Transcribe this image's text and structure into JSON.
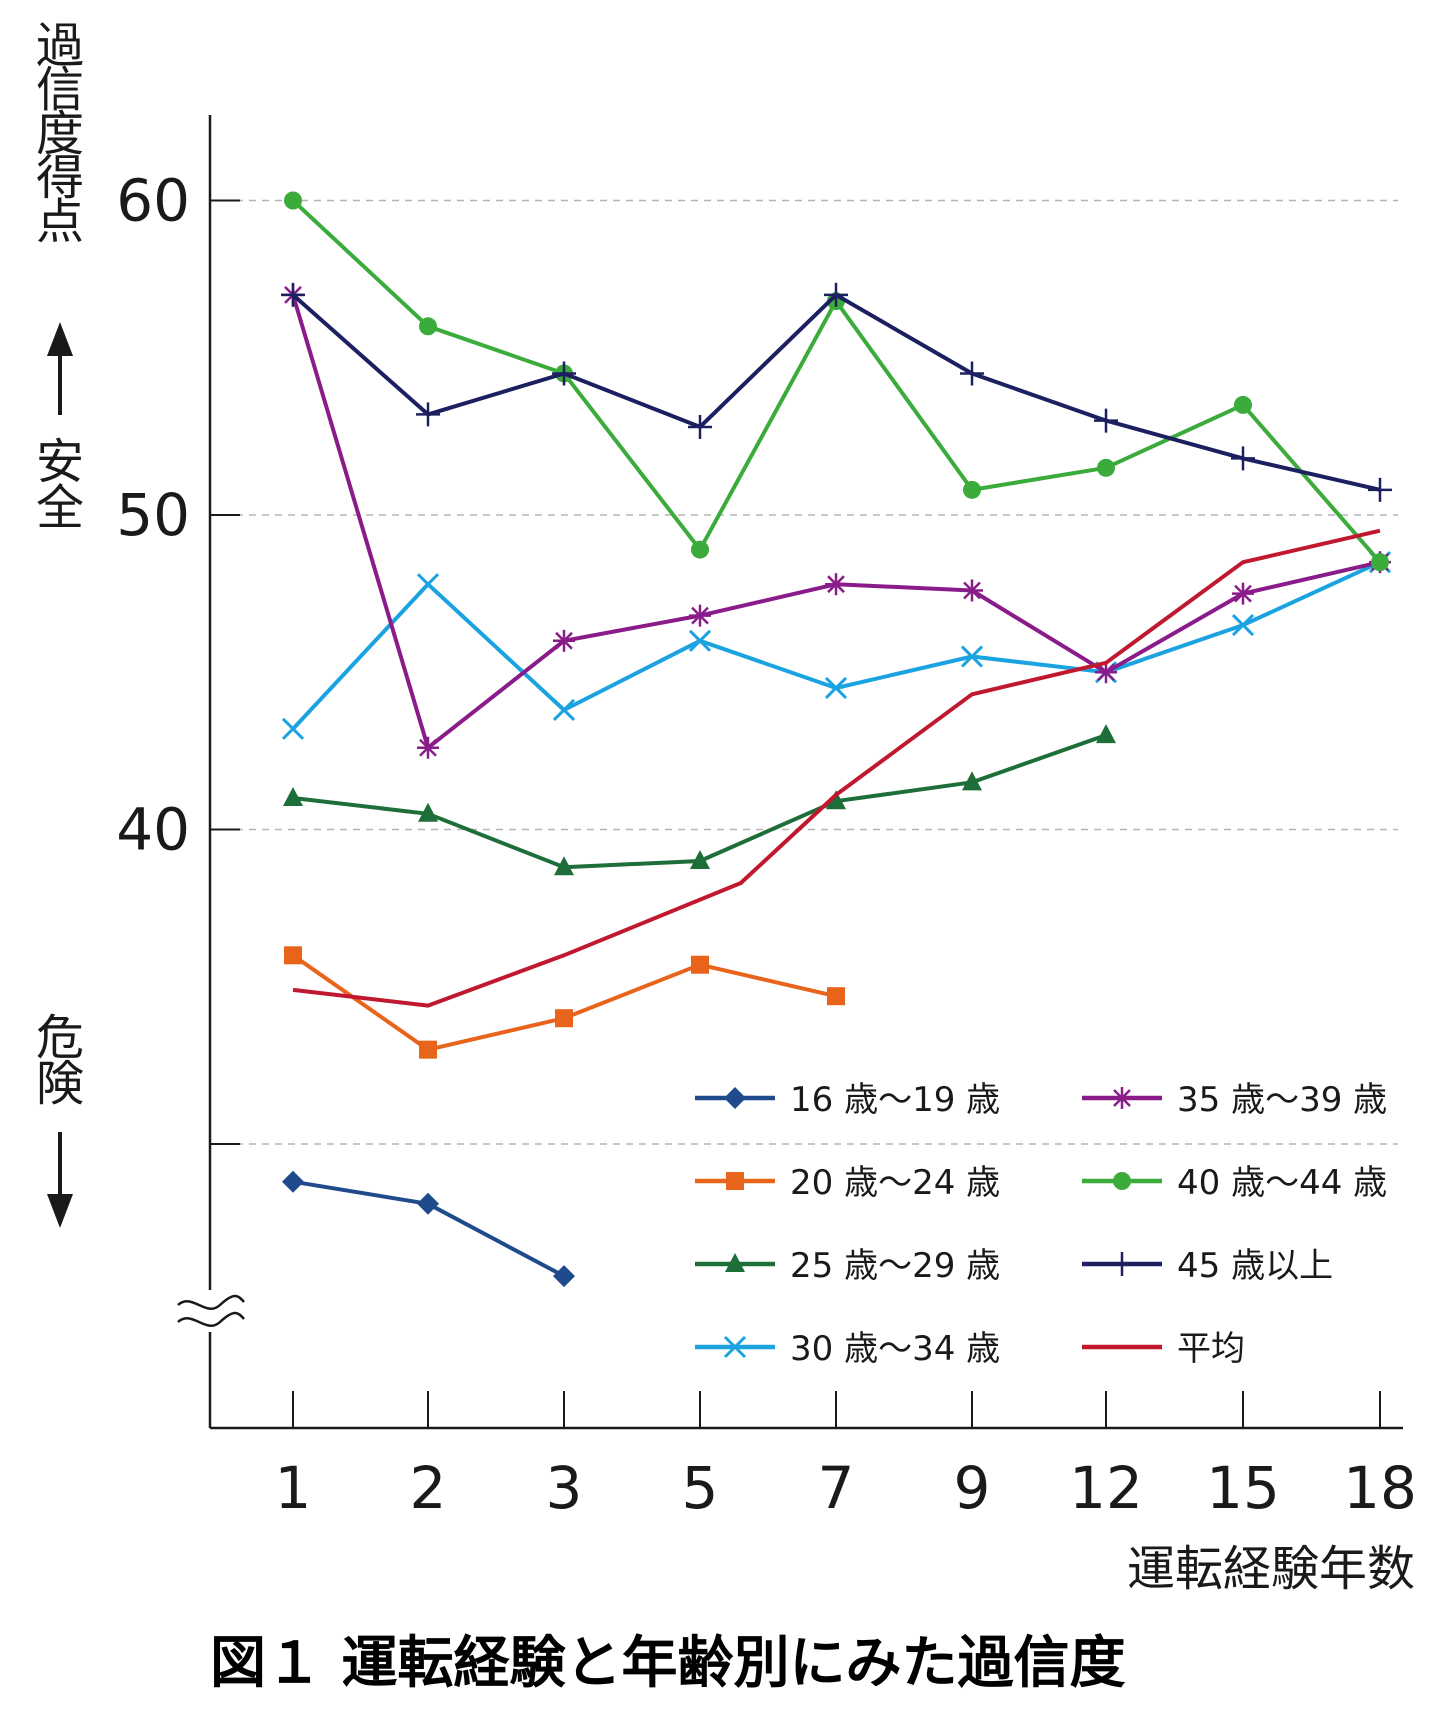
{
  "chart_data": {
    "type": "line",
    "title": "図１ 運転経験と年齢別にみた過信度",
    "ylabel_chars": [
      "過",
      "信",
      "度",
      "得",
      "点"
    ],
    "safe_chars": [
      "安",
      "全"
    ],
    "danger_chars": [
      "危",
      "険"
    ],
    "xlabel": "運転経験年数",
    "categories": [
      "1",
      "2",
      "3",
      "5",
      "7",
      "9",
      "12",
      "15",
      "18"
    ],
    "y_ticks": [
      60,
      50,
      40
    ],
    "ylim": [
      26,
      63
    ],
    "series": [
      {
        "name": "16 歳〜19 歳",
        "color": "#1f4a8c",
        "marker": "diamond",
        "values": [
          28.8,
          28.1,
          25.8,
          null,
          null,
          null,
          null,
          null,
          null
        ]
      },
      {
        "name": "20 歳〜24 歳",
        "color": "#e8641b",
        "marker": "square",
        "values": [
          36.0,
          33.0,
          34.0,
          35.7,
          34.7,
          null,
          null,
          null,
          null
        ]
      },
      {
        "name": "25 歳〜29 歳",
        "color": "#1e6e3a",
        "marker": "triangle",
        "values": [
          41.0,
          40.5,
          38.8,
          39.0,
          40.9,
          41.5,
          43.0,
          null,
          null
        ]
      },
      {
        "name": "30 歳〜34 歳",
        "color": "#1aa3e0",
        "marker": "x",
        "values": [
          43.2,
          47.8,
          43.8,
          46.0,
          44.5,
          45.5,
          45.0,
          46.5,
          48.5
        ]
      },
      {
        "name": "35 歳〜39 歳",
        "color": "#8a1c8a",
        "marker": "asterisk",
        "values": [
          57.0,
          42.6,
          46.0,
          46.8,
          47.8,
          47.6,
          45.0,
          47.5,
          48.5
        ]
      },
      {
        "name": "40 歳〜44 歳",
        "color": "#3bab3b",
        "marker": "circle",
        "values": [
          60.0,
          56.0,
          54.5,
          48.9,
          56.8,
          50.8,
          51.5,
          53.5,
          48.5
        ]
      },
      {
        "name": "45 歳以上",
        "color": "#1d2060",
        "marker": "plus",
        "values": [
          57.0,
          53.2,
          54.5,
          52.8,
          57.0,
          54.5,
          53.0,
          51.8,
          50.8
        ]
      },
      {
        "name": "平均",
        "color": "#c0182e",
        "marker": "none",
        "values": [
          34.9,
          34.4,
          36.0,
          null,
          null,
          44.3,
          45.3,
          48.5,
          49.5
        ],
        "extra_points": [
          [
            3.3,
            38.3
          ],
          [
            4.0,
            41.1
          ]
        ]
      }
    ]
  }
}
